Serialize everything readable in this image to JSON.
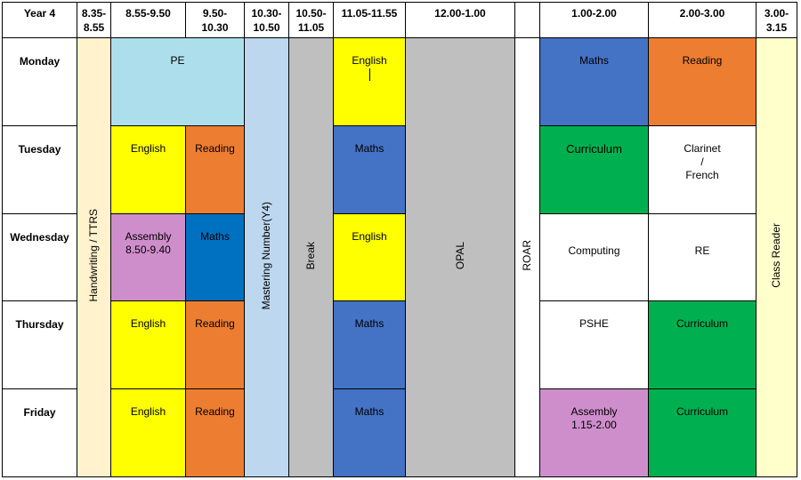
{
  "header": {
    "year": "Year 4",
    "t1": "8.35-\n8.55",
    "t2": "8.55-9.50",
    "t3": "9.50-\n10.30",
    "t4": "10.30-\n10.50",
    "t5": "10.50-\n11.05",
    "t6": "11.05-11.55",
    "t7": "12.00-1.00",
    "t9": "1.00-2.00",
    "t10": "2.00-3.00",
    "t11": "3.00-\n3.15"
  },
  "days": {
    "monday": "Monday",
    "tuesday": "Tuesday",
    "wednesday": "Wednesday",
    "thursday": "Thursday",
    "friday": "Friday"
  },
  "vertical": {
    "handwriting": "Handwriting / TTRS",
    "mastering": "Mastering Number(Y4)",
    "break": "Break",
    "opal": "OPAL",
    "roar": "ROAR",
    "class_reader": "Class Reader"
  },
  "monday": {
    "pe": "PE",
    "english": "English",
    "pm1": "Maths",
    "pm2": "Reading"
  },
  "tuesday": {
    "am1": "English",
    "am2": "Reading",
    "mid": "Maths",
    "pm1": "Curriculum",
    "pm2": "Clarinet\n/\nFrench"
  },
  "wednesday": {
    "am1": "Assembly\n8.50-9.40",
    "am2": "Maths",
    "mid": "English",
    "pm1": "Computing",
    "pm2": "RE"
  },
  "thursday": {
    "am1": "English",
    "am2": "Reading",
    "mid": "Maths",
    "pm1": "PSHE",
    "pm2": "Curriculum"
  },
  "friday": {
    "am1": "English",
    "am2": "Reading",
    "mid": "Maths",
    "pm1": "Assembly\n1.15-2.00",
    "pm2": "Curriculum"
  },
  "colors": {
    "handwriting": "#FFF2CC",
    "pe": "#ADDEEB",
    "mastering": "#BDD7EE",
    "break": "#BFBFBF",
    "yellow": "#FFFF00",
    "orange": "#ED7D31",
    "blue": "#4472C4",
    "dark_blue": "#0070C0",
    "green": "#00B050",
    "purple": "#CE8ECB",
    "class_reader": "#FFFFCC"
  }
}
